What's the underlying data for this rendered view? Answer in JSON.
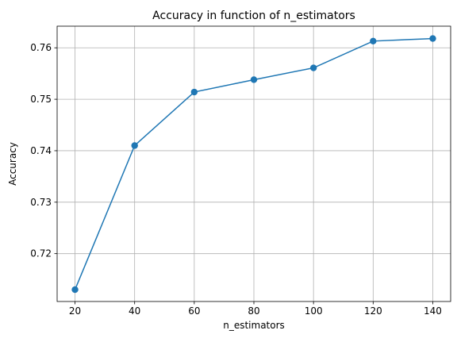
{
  "chart_data": {
    "type": "line",
    "title": "Accuracy in function of n_estimators",
    "xlabel": "n_estimators",
    "ylabel": "Accuracy",
    "x": [
      20,
      40,
      60,
      80,
      100,
      120,
      140
    ],
    "series": [
      {
        "values": [
          0.713,
          0.741,
          0.7514,
          0.7538,
          0.7561,
          0.7613,
          0.7618
        ]
      }
    ],
    "xlim": [
      14,
      146
    ],
    "ylim": [
      0.7107,
      0.7642
    ],
    "xticks": [
      20,
      40,
      60,
      80,
      100,
      120,
      140
    ],
    "xtick_labels": [
      "20",
      "40",
      "60",
      "80",
      "100",
      "120",
      "140"
    ],
    "yticks": [
      0.72,
      0.73,
      0.74,
      0.75,
      0.76
    ],
    "ytick_labels": [
      "0.72",
      "0.73",
      "0.74",
      "0.75",
      "0.76"
    ],
    "grid": true,
    "marker": "circle",
    "colors": {
      "line": "#1f77b4",
      "grid": "#b0b0b0",
      "axis": "#000000"
    }
  }
}
